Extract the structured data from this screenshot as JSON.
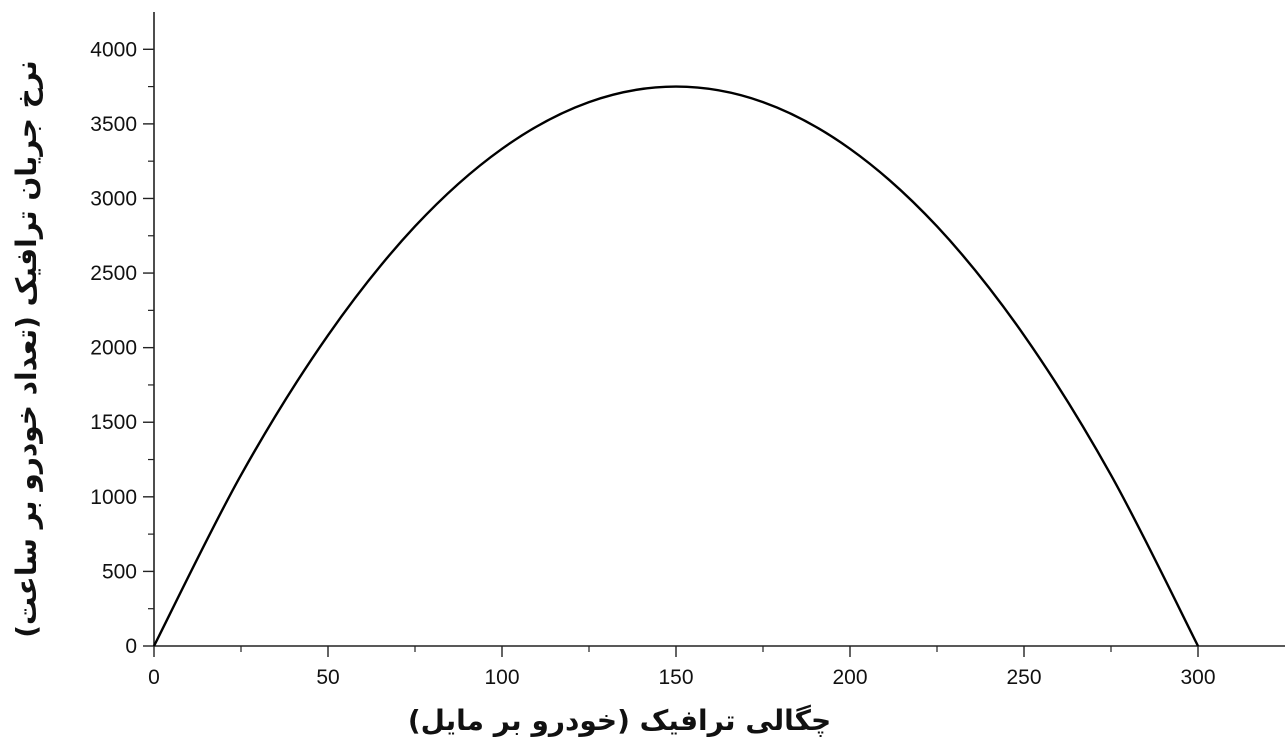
{
  "chart_data": {
    "type": "line",
    "title": "",
    "xlabel": "چگالی ترافیک (خودرو بر مایل)",
    "ylabel": "نرخ جریان ترافیک (تعداد خودرو بر ساعت)",
    "xlim": [
      0,
      325
    ],
    "ylim": [
      0,
      4250
    ],
    "x_ticks": [
      "0",
      "50",
      "100",
      "150",
      "200",
      "250",
      "300"
    ],
    "y_ticks": [
      "0",
      "500",
      "1000",
      "1500",
      "2000",
      "2500",
      "3000",
      "3500",
      "4000"
    ],
    "grid": false,
    "series": [
      {
        "x": [
          0,
          25,
          50,
          75,
          100,
          125,
          150,
          175,
          200,
          225,
          250,
          275,
          300
        ],
        "y": [
          0,
          1146,
          2083,
          2813,
          3333,
          3646,
          3750,
          3646,
          3333,
          2813,
          2083,
          1146,
          0
        ],
        "color": "#000000"
      }
    ]
  }
}
